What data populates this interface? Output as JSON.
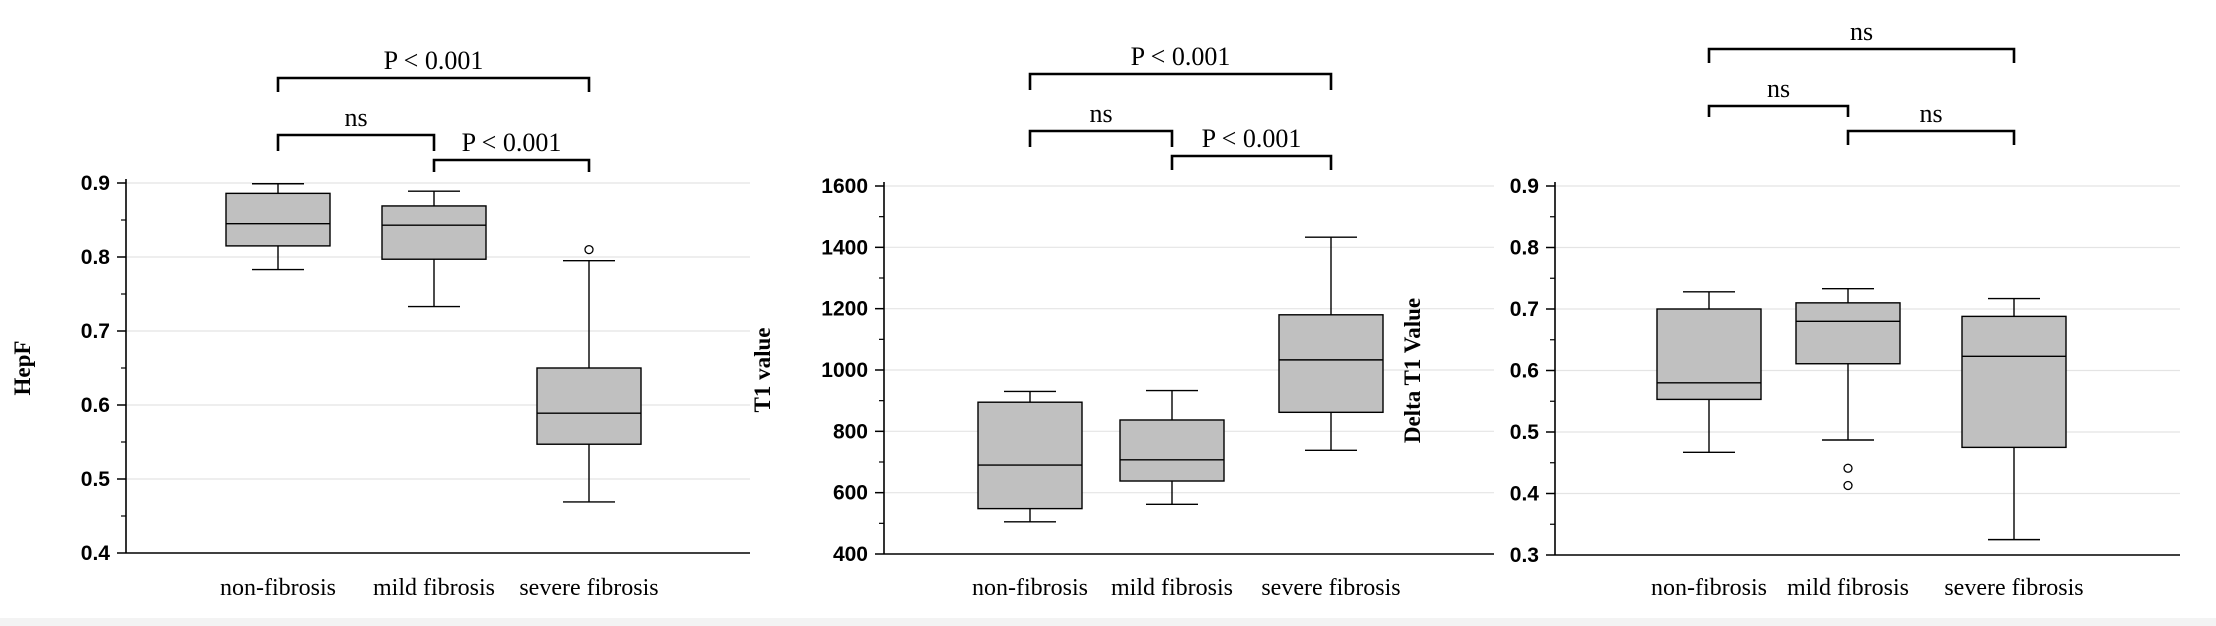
{
  "chart_data": [
    {
      "type": "box",
      "ylabel": "HepF",
      "ylim": [
        0.4,
        0.9
      ],
      "yticks": [
        "0.4",
        "0.5",
        "0.6",
        "0.7",
        "0.8",
        "0.9"
      ],
      "categories": [
        "non-fibrosis",
        "mild fibrosis",
        "severe fibrosis"
      ],
      "boxes": [
        {
          "whisker_low": 0.783,
          "q1": 0.815,
          "median": 0.845,
          "q3": 0.886,
          "whisker_high": 0.899,
          "outliers": []
        },
        {
          "whisker_low": 0.733,
          "q1": 0.797,
          "median": 0.843,
          "q3": 0.869,
          "whisker_high": 0.889,
          "outliers": []
        },
        {
          "whisker_low": 0.469,
          "q1": 0.547,
          "median": 0.589,
          "q3": 0.65,
          "whisker_high": 0.795,
          "outliers": [
            0.81
          ]
        }
      ],
      "comparisons": [
        {
          "from": 0,
          "to": 1,
          "label": "ns"
        },
        {
          "from": 1,
          "to": 2,
          "label": "P < 0.001"
        },
        {
          "from": 0,
          "to": 2,
          "label": "P < 0.001"
        }
      ]
    },
    {
      "type": "box",
      "ylabel": "T1 value",
      "ylim": [
        400,
        1600
      ],
      "yticks": [
        "400",
        "600",
        "800",
        "1000",
        "1200",
        "1400",
        "1600"
      ],
      "categories": [
        "non-fibrosis",
        "mild fibrosis",
        "severe fibrosis"
      ],
      "boxes": [
        {
          "whisker_low": 505,
          "q1": 548,
          "median": 690,
          "q3": 895,
          "whisker_high": 930,
          "outliers": []
        },
        {
          "whisker_low": 562,
          "q1": 638,
          "median": 707,
          "q3": 837,
          "whisker_high": 933,
          "outliers": []
        },
        {
          "whisker_low": 738,
          "q1": 862,
          "median": 1033,
          "q3": 1180,
          "whisker_high": 1433,
          "outliers": []
        }
      ],
      "comparisons": [
        {
          "from": 0,
          "to": 1,
          "label": "ns"
        },
        {
          "from": 1,
          "to": 2,
          "label": "P < 0.001"
        },
        {
          "from": 0,
          "to": 2,
          "label": "P < 0.001"
        }
      ]
    },
    {
      "type": "box",
      "ylabel": "Delta T1 Value",
      "ylim": [
        0.3,
        0.9
      ],
      "yticks": [
        "0.3",
        "0.4",
        "0.5",
        "0.6",
        "0.7",
        "0.8",
        "0.9"
      ],
      "categories": [
        "non-fibrosis",
        "mild fibrosis",
        "severe fibrosis"
      ],
      "boxes": [
        {
          "whisker_low": 0.467,
          "q1": 0.553,
          "median": 0.58,
          "q3": 0.7,
          "whisker_high": 0.728,
          "outliers": []
        },
        {
          "whisker_low": 0.487,
          "q1": 0.611,
          "median": 0.68,
          "q3": 0.71,
          "whisker_high": 0.733,
          "outliers": [
            0.441,
            0.413
          ]
        },
        {
          "whisker_low": 0.325,
          "q1": 0.475,
          "median": 0.623,
          "q3": 0.688,
          "whisker_high": 0.717,
          "outliers": []
        }
      ],
      "comparisons": [
        {
          "from": 0,
          "to": 1,
          "label": "ns"
        },
        {
          "from": 1,
          "to": 2,
          "label": "ns"
        },
        {
          "from": 0,
          "to": 2,
          "label": "ns"
        }
      ]
    }
  ],
  "style": {
    "box_fill": "#c0c0c0",
    "line_color": "#000000",
    "grid_color": "#e4e4e4"
  }
}
